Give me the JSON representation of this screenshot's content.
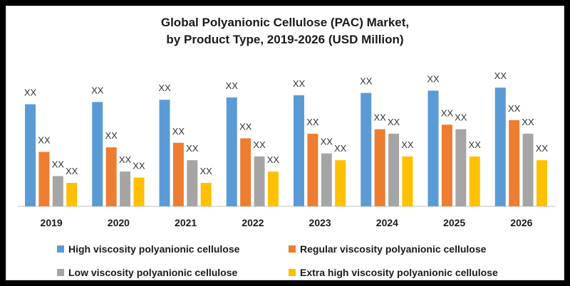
{
  "chart_data": {
    "type": "bar",
    "title": "Global Polyanionic Cellulose (PAC) Market,",
    "subtitle": "by Product Type, 2019-2026 (USD Million)",
    "categories": [
      "2019",
      "2020",
      "2021",
      "2022",
      "2023",
      "2024",
      "2025",
      "2026"
    ],
    "series": [
      {
        "name": "High viscosity polyanionic cellulose",
        "color": "#5b9bd5",
        "values": [
          135,
          138,
          141,
          144,
          147,
          150,
          153,
          157
        ]
      },
      {
        "name": "Regular viscosity polyanionic cellulose",
        "color": "#ed7d31",
        "values": [
          72,
          78,
          84,
          90,
          96,
          102,
          108,
          114
        ]
      },
      {
        "name": "Low viscosity polyanionic cellulose",
        "color": "#a5a5a5",
        "values": [
          40,
          46,
          61,
          66,
          70,
          96,
          102,
          96
        ]
      },
      {
        "name": "Extra high viscosity polyanionic cellulose",
        "color": "#ffc000",
        "values": [
          31,
          38,
          31,
          46,
          61,
          66,
          66,
          61
        ]
      }
    ],
    "data_label": "XX",
    "legend_position": "bottom",
    "grid": false
  }
}
